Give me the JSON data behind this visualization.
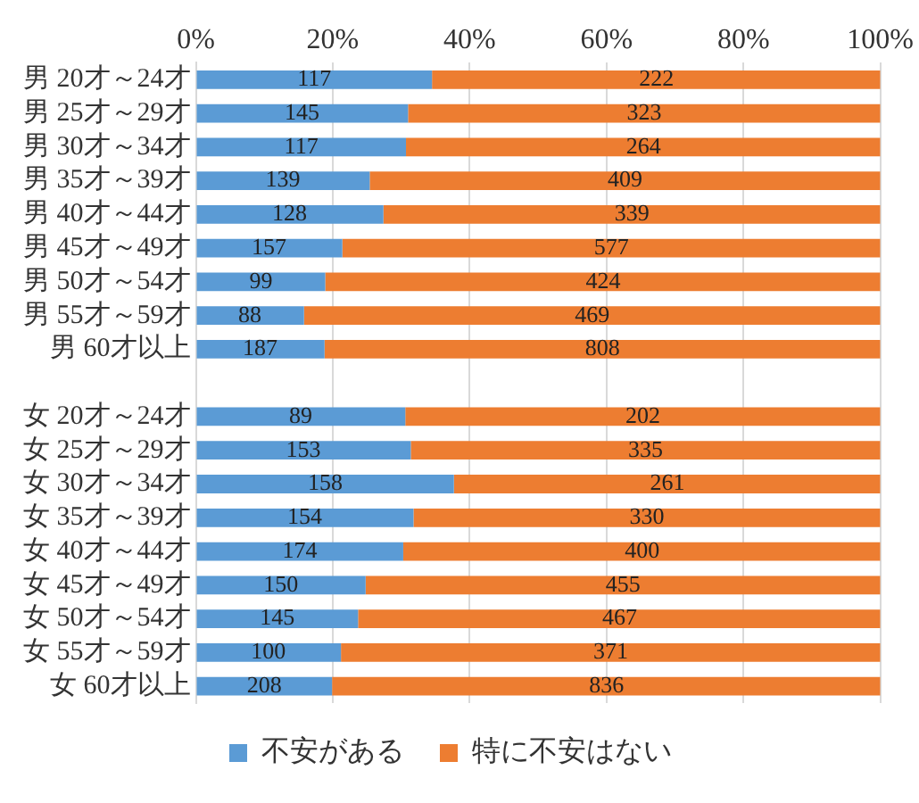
{
  "chart_data": {
    "type": "bar",
    "orientation": "horizontal",
    "stacked": true,
    "categories": [
      "男 20才～24才",
      "男 25才～29才",
      "男 30才～34才",
      "男 35才～39才",
      "男 40才～44才",
      "男 45才～49才",
      "男 50才～54才",
      "男 55才～59才",
      "男 60才以上",
      null,
      "女 20才～24才",
      "女 25才～29才",
      "女 30才～34才",
      "女 35才～39才",
      "女 40才～44才",
      "女 45才～49才",
      "女 50才～54才",
      "女 55才～59才",
      "女 60才以上"
    ],
    "series": [
      {
        "name": "不安がある",
        "color": "#5b9bd5",
        "values": [
          34.5,
          31.0,
          30.7,
          25.4,
          27.4,
          21.4,
          18.9,
          15.8,
          18.8,
          null,
          30.6,
          31.4,
          37.7,
          31.8,
          30.3,
          24.8,
          23.7,
          21.2,
          19.9
        ]
      },
      {
        "name": "特に不安はない",
        "color": "#ed7d31",
        "values": [
          65.5,
          69.0,
          69.3,
          74.6,
          72.6,
          78.6,
          81.1,
          84.2,
          81.2,
          null,
          69.4,
          68.6,
          62.3,
          68.2,
          69.7,
          75.2,
          76.3,
          78.8,
          80.1
        ]
      }
    ],
    "annotations": [
      {
        "text": "117",
        "x": 17.3,
        "y": "男 20才～24才"
      },
      {
        "text": "222",
        "x": 67.3,
        "y": "男 20才～24才"
      },
      {
        "text": "145",
        "x": 15.5,
        "y": "男 25才～29才"
      },
      {
        "text": "323",
        "x": 65.5,
        "y": "男 25才～29才"
      },
      {
        "text": "117",
        "x": 15.4,
        "y": "男 30才～34才"
      },
      {
        "text": "264",
        "x": 65.4,
        "y": "男 30才～34才"
      },
      {
        "text": "139",
        "x": 12.7,
        "y": "男 35才～39才"
      },
      {
        "text": "409",
        "x": 62.7,
        "y": "男 35才～39才"
      },
      {
        "text": "128",
        "x": 13.7,
        "y": "男 40才～44才"
      },
      {
        "text": "339",
        "x": 63.7,
        "y": "男 40才～44才"
      },
      {
        "text": "157",
        "x": 10.7,
        "y": "男 45才～49才"
      },
      {
        "text": "577",
        "x": 60.7,
        "y": "男 45才～49才"
      },
      {
        "text": "99",
        "x": 9.5,
        "y": "男 50才～54才"
      },
      {
        "text": "424",
        "x": 59.5,
        "y": "男 50才～54才"
      },
      {
        "text": "88",
        "x": 7.9,
        "y": "男 55才～59才"
      },
      {
        "text": "469",
        "x": 57.9,
        "y": "男 55才～59才"
      },
      {
        "text": "187",
        "x": 9.4,
        "y": "男 60才以上"
      },
      {
        "text": "808",
        "x": 59.4,
        "y": "男 60才以上"
      },
      {
        "text": "89",
        "x": 15.3,
        "y": "女 20才～24才"
      },
      {
        "text": "202",
        "x": 65.3,
        "y": "女 20才～24才"
      },
      {
        "text": "153",
        "x": 15.7,
        "y": "女 25才～29才"
      },
      {
        "text": "335",
        "x": 65.7,
        "y": "女 25才～29才"
      },
      {
        "text": "158",
        "x": 18.9,
        "y": "女 30才～34才"
      },
      {
        "text": "261",
        "x": 68.9,
        "y": "女 30才～34才"
      },
      {
        "text": "154",
        "x": 15.9,
        "y": "女 35才～39才"
      },
      {
        "text": "330",
        "x": 65.9,
        "y": "女 35才～39才"
      },
      {
        "text": "174",
        "x": 15.2,
        "y": "女 40才～44才"
      },
      {
        "text": "400",
        "x": 65.2,
        "y": "女 40才～44才"
      },
      {
        "text": "150",
        "x": 12.4,
        "y": "女 45才～49才"
      },
      {
        "text": "455",
        "x": 62.4,
        "y": "女 45才～49才"
      },
      {
        "text": "145",
        "x": 11.9,
        "y": "女 50才～54才"
      },
      {
        "text": "467",
        "x": 61.9,
        "y": "女 50才～54才"
      },
      {
        "text": "100",
        "x": 10.6,
        "y": "女 55才～59才"
      },
      {
        "text": "371",
        "x": 60.6,
        "y": "女 55才～59才"
      },
      {
        "text": "208",
        "x": 10.0,
        "y": "女 60才以上"
      },
      {
        "text": "836",
        "x": 60.0,
        "y": "女 60才以上"
      }
    ],
    "xlim": [
      0,
      100
    ],
    "xticks": [
      {
        "value": 0,
        "label": "0%"
      },
      {
        "value": 20,
        "label": "20%"
      },
      {
        "value": 40,
        "label": "40%"
      },
      {
        "value": 60,
        "label": "60%"
      },
      {
        "value": 80,
        "label": "80%"
      },
      {
        "value": 100,
        "label": "100%"
      }
    ],
    "grid": "x",
    "legend": "bottom"
  }
}
